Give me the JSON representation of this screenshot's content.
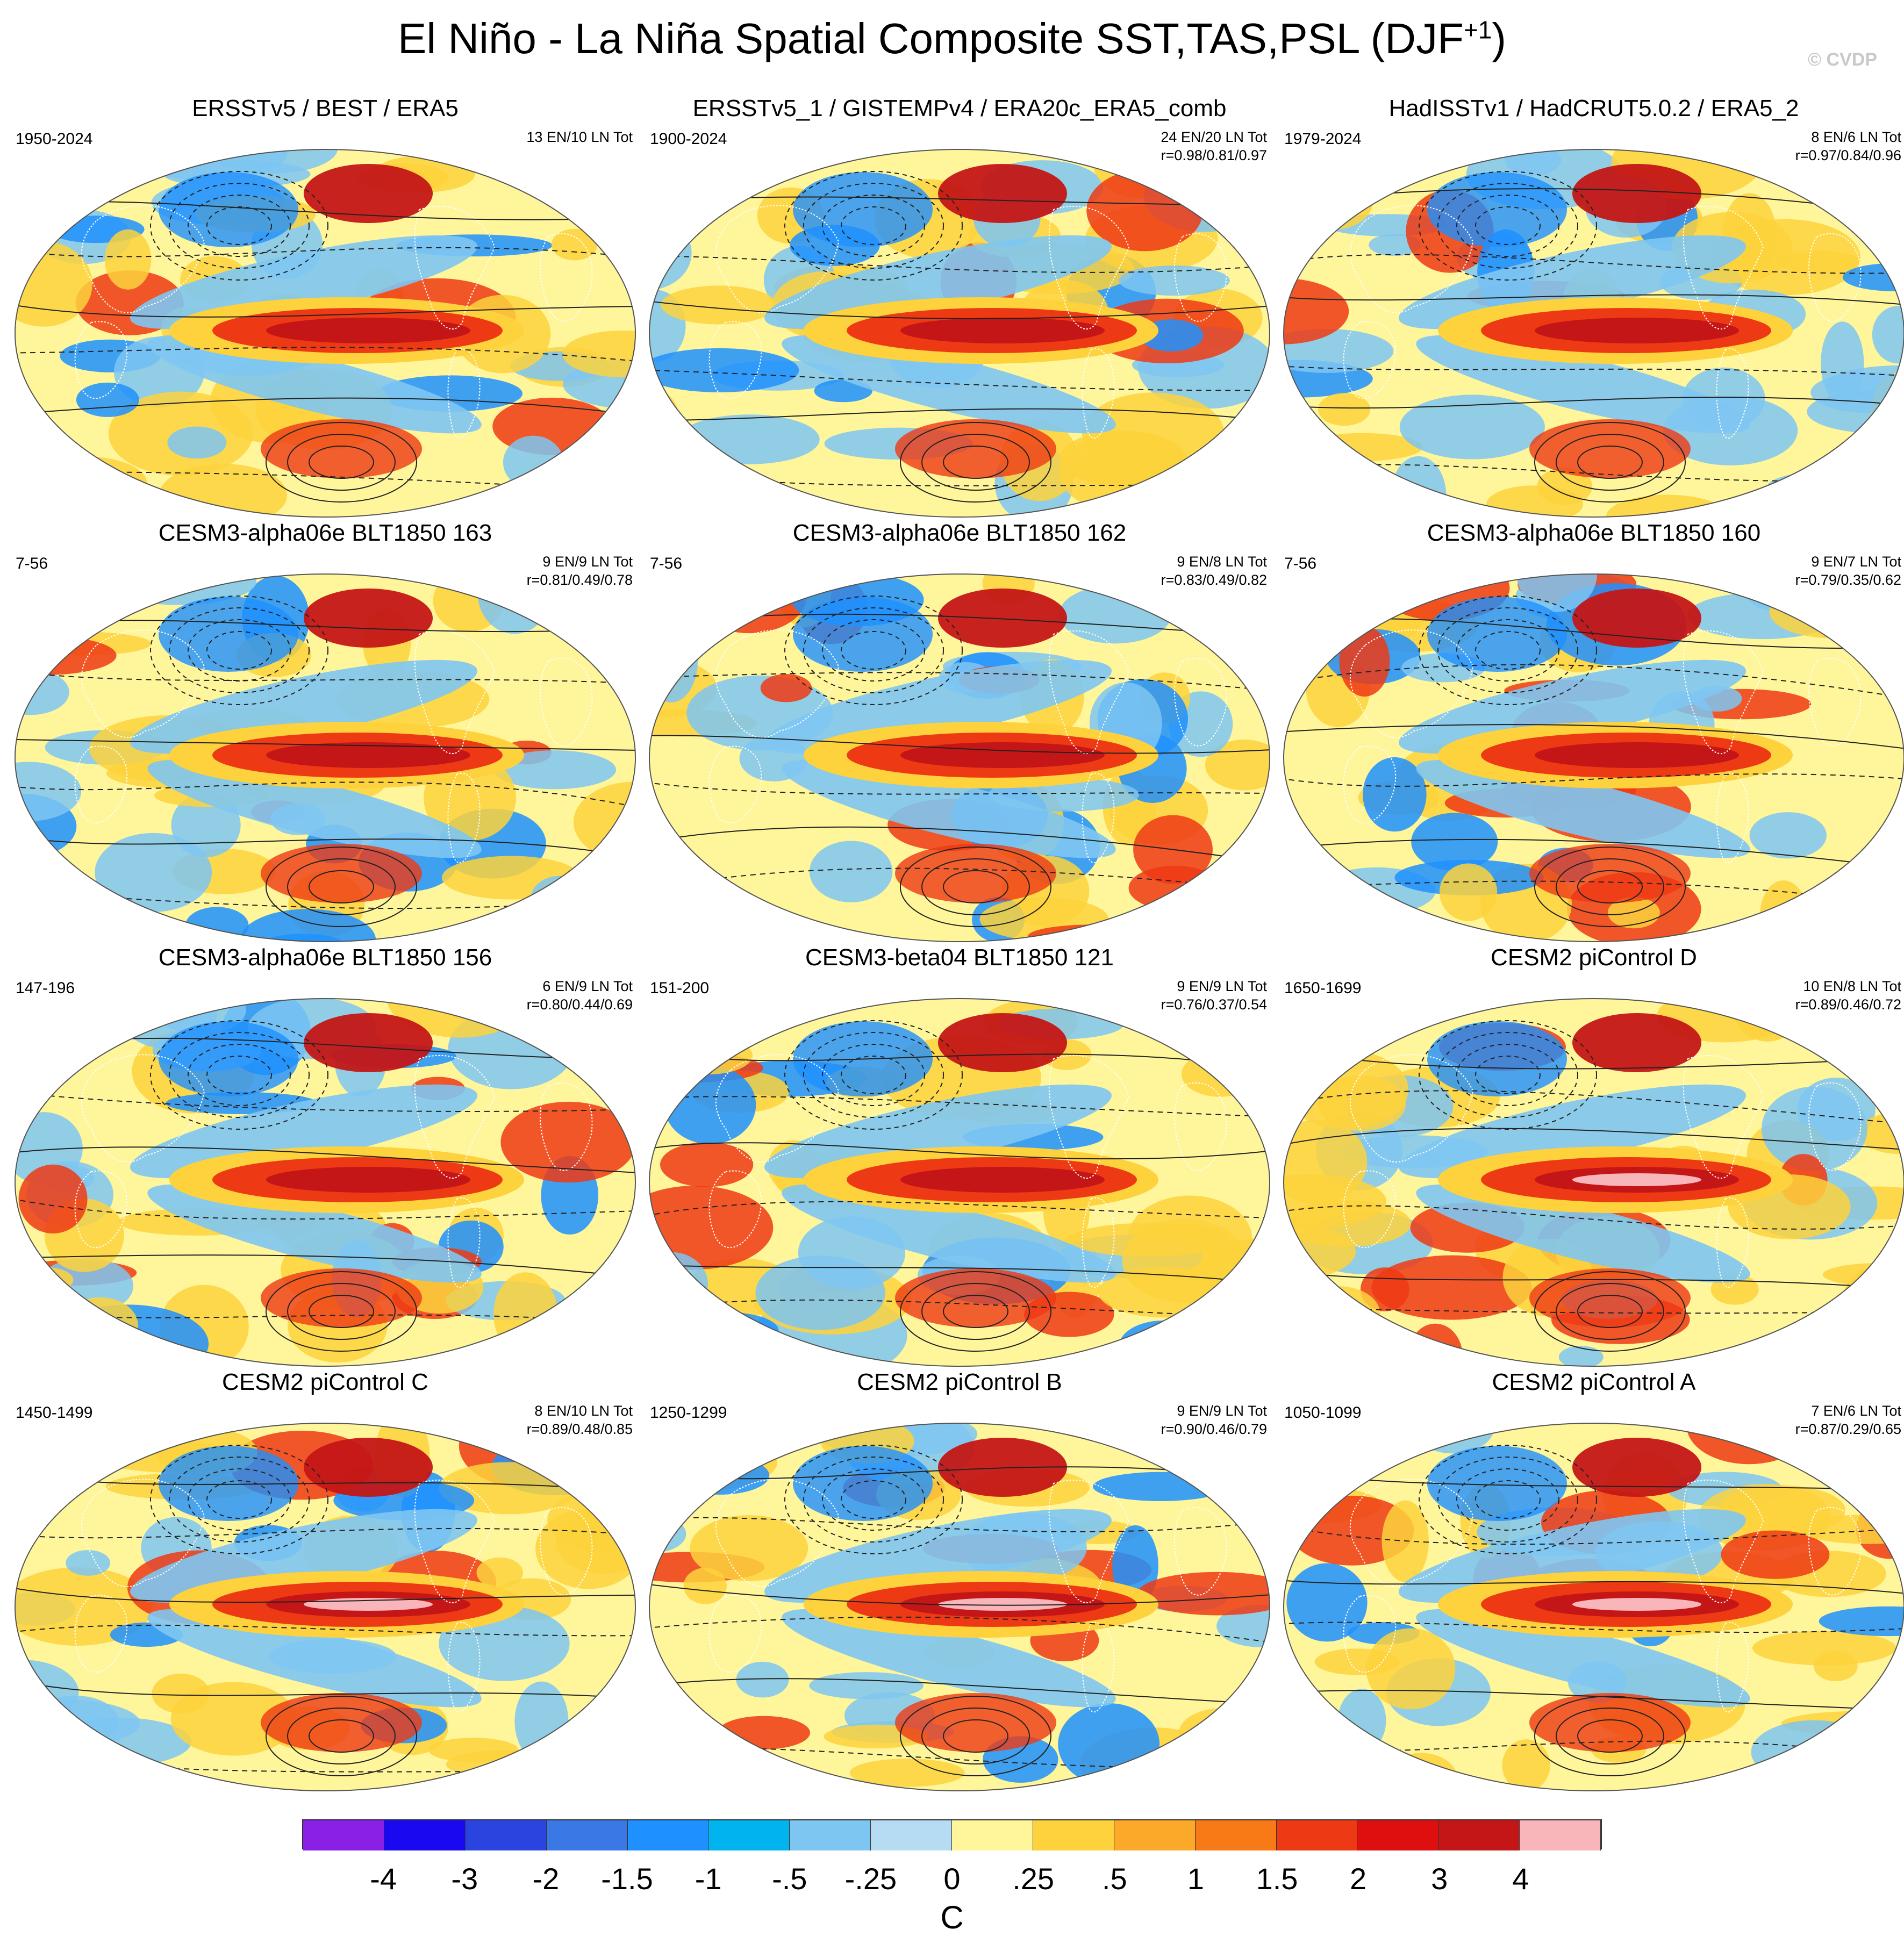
{
  "title": "El Niño - La Niña Spatial Composite SST,TAS,PSL (DJF",
  "title_superscript": "+1",
  "title_suffix": ")",
  "watermark": "© CVDP",
  "panels": [
    {
      "title": "ERSSTv5 / BEST / ERA5",
      "years": "1950-2024",
      "counts": "13 EN/10 LN Tot",
      "rvals": ""
    },
    {
      "title": "ERSSTv5_1 / GISTEMPv4 / ERA20c_ERA5_comb",
      "years": "1900-2024",
      "counts": "24 EN/20 LN Tot",
      "rvals": "r=0.98/0.81/0.97"
    },
    {
      "title": "HadISSTv1 / HadCRUT5.0.2 / ERA5_2",
      "years": "1979-2024",
      "counts": "8 EN/6 LN Tot",
      "rvals": "r=0.97/0.84/0.96"
    },
    {
      "title": "CESM3-alpha06e BLT1850 163",
      "years": "7-56",
      "counts": "9 EN/9 LN Tot",
      "rvals": "r=0.81/0.49/0.78"
    },
    {
      "title": "CESM3-alpha06e BLT1850 162",
      "years": "7-56",
      "counts": "9 EN/8 LN Tot",
      "rvals": "r=0.83/0.49/0.82"
    },
    {
      "title": "CESM3-alpha06e BLT1850 160",
      "years": "7-56",
      "counts": "9 EN/7 LN Tot",
      "rvals": "r=0.79/0.35/0.62"
    },
    {
      "title": "CESM3-alpha06e BLT1850 156",
      "years": "147-196",
      "counts": "6 EN/9 LN Tot",
      "rvals": "r=0.80/0.44/0.69"
    },
    {
      "title": "CESM3-beta04 BLT1850 121",
      "years": "151-200",
      "counts": "9 EN/9 LN Tot",
      "rvals": "r=0.76/0.37/0.54"
    },
    {
      "title": "CESM2 piControl D",
      "years": "1650-1699",
      "counts": "10 EN/8 LN Tot",
      "rvals": "r=0.89/0.46/0.72"
    },
    {
      "title": "CESM2 piControl C",
      "years": "1450-1499",
      "counts": "8 EN/10 LN Tot",
      "rvals": "r=0.89/0.48/0.85"
    },
    {
      "title": "CESM2 piControl B",
      "years": "1250-1299",
      "counts": "9 EN/9 LN Tot",
      "rvals": "r=0.90/0.46/0.79"
    },
    {
      "title": "CESM2 piControl A",
      "years": "1050-1099",
      "counts": "7 EN/6 LN Tot",
      "rvals": "r=0.87/0.29/0.65"
    }
  ],
  "colorbar": {
    "ticks": [
      "-4",
      "-3",
      "-2",
      "-1.5",
      "-1",
      "-.5",
      "-.25",
      "0",
      ".25",
      ".5",
      "1",
      "1.5",
      "2",
      "3",
      "4"
    ],
    "colors": [
      "#8a1fe6",
      "#1a08f0",
      "#2b44e0",
      "#3a78e6",
      "#1e90ff",
      "#00b4f0",
      "#7ec6f2",
      "#b5dcf2",
      "#fff59a",
      "#fdd23c",
      "#fca92a",
      "#f87a16",
      "#ee3a14",
      "#dd0f0f",
      "#c41616",
      "#f9b6ba"
    ],
    "units": "C"
  },
  "palette": {
    "ocean_warm": "#fdd23c",
    "ocean_mid": "#fff59a",
    "cool": "#7ec6f2",
    "cold": "#1e90ff",
    "hot": "#ee3a14",
    "very_hot": "#c41616",
    "extreme": "#f9b6ba",
    "deep_cold": "#1a08f0"
  }
}
